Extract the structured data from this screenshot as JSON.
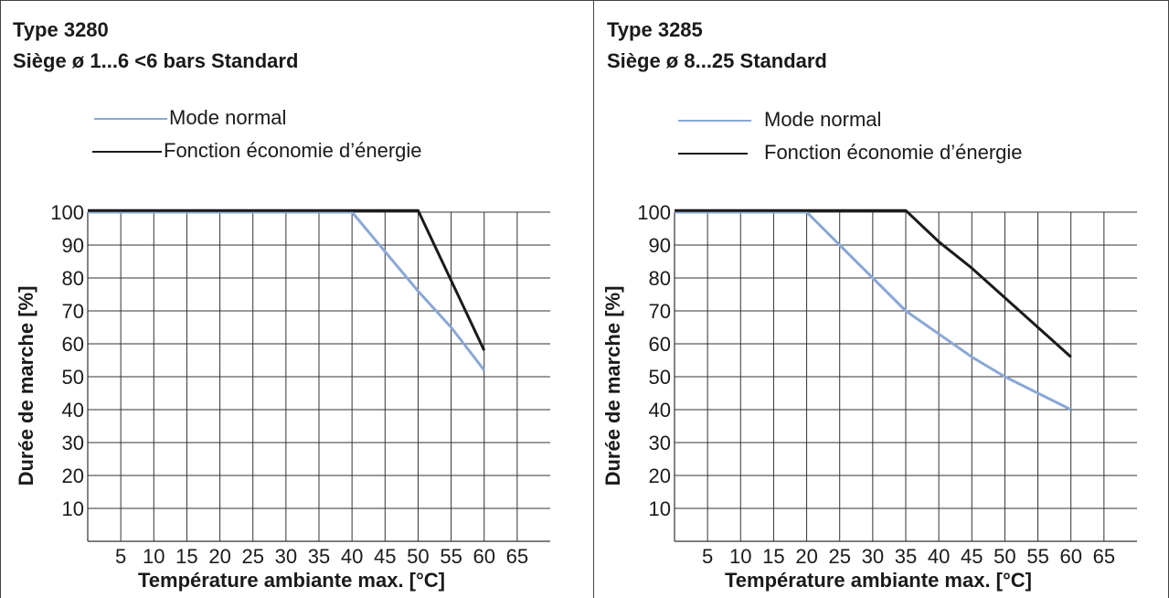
{
  "colors": {
    "normal": "#8aa8d4",
    "eco": "#1a1a1a",
    "grid": "#333333"
  },
  "chart_data": [
    {
      "type": "line",
      "title": "Type 3280",
      "subtitle": "Siège ø 1...6 <6 bars Standard",
      "xlabel": "Température ambiante max. [°C]",
      "ylabel": "Durée de marche [%]",
      "xlim": [
        0,
        70
      ],
      "ylim": [
        0,
        100
      ],
      "xticks": [
        5,
        10,
        15,
        20,
        25,
        30,
        35,
        40,
        45,
        50,
        55,
        60,
        65
      ],
      "yticks": [
        10,
        20,
        30,
        40,
        50,
        60,
        70,
        80,
        90,
        100
      ],
      "grid": true,
      "legend_position": "top",
      "series": [
        {
          "name": "Mode normal",
          "x": [
            0,
            40,
            45,
            50,
            55,
            60
          ],
          "y": [
            100,
            100,
            88,
            76,
            65,
            52
          ]
        },
        {
          "name": "Fonction économie d’énergie",
          "x": [
            0,
            50,
            60
          ],
          "y": [
            100.5,
            100.5,
            58
          ]
        }
      ]
    },
    {
      "type": "line",
      "title": "Type 3285",
      "subtitle": "Siège ø 8...25 Standard",
      "xlabel": "Température ambiante max. [°C]",
      "ylabel": "Durée de marche [%]",
      "xlim": [
        0,
        70
      ],
      "ylim": [
        0,
        100
      ],
      "xticks": [
        5,
        10,
        15,
        20,
        25,
        30,
        35,
        40,
        45,
        50,
        55,
        60,
        65
      ],
      "yticks": [
        10,
        20,
        30,
        40,
        50,
        60,
        70,
        80,
        90,
        100
      ],
      "grid": true,
      "legend_position": "top",
      "series": [
        {
          "name": "Mode normal",
          "x": [
            0,
            20,
            25,
            30,
            35,
            40,
            45,
            50,
            55,
            60
          ],
          "y": [
            100,
            100,
            90,
            80,
            70,
            63,
            56,
            50,
            45,
            40
          ]
        },
        {
          "name": "Fonction économie d’énergie",
          "x": [
            0,
            35,
            40,
            45,
            50,
            55,
            60
          ],
          "y": [
            100.5,
            100.5,
            91,
            83,
            74,
            65,
            56
          ]
        }
      ]
    }
  ]
}
